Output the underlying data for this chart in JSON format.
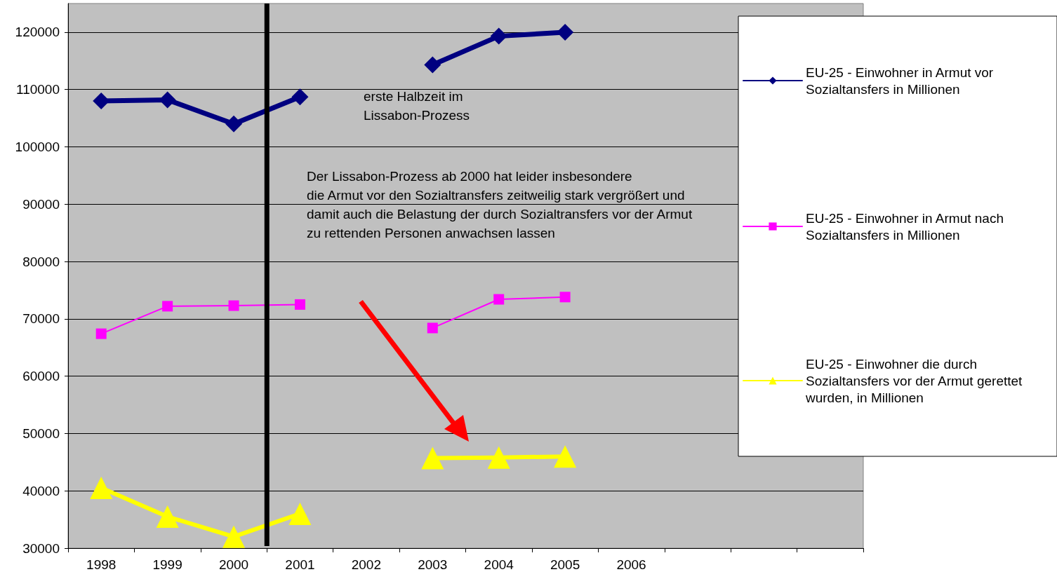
{
  "chart_data": {
    "type": "line",
    "categories": [
      "1998",
      "1999",
      "2000",
      "2001",
      "2002",
      "2003",
      "2004",
      "2005",
      "2006",
      null,
      null,
      null
    ],
    "series": [
      {
        "name": "EU-25 - Einwohner in Armut vor Sozialtansfers in Millionen",
        "color": "#000080",
        "marker": "diamond",
        "values": [
          108000,
          108200,
          104000,
          108700,
          null,
          114300,
          119300,
          120000,
          null,
          null,
          null,
          null
        ]
      },
      {
        "name": "EU-25 - Einwohner in Armut nach Sozialtansfers in Millionen",
        "color": "#ff00ff",
        "marker": "square",
        "values": [
          67400,
          72200,
          72300,
          72500,
          null,
          68400,
          73400,
          73800,
          null,
          null,
          null,
          null
        ]
      },
      {
        "name": "EU-25 - Einwohner die durch Sozialtansfers vor der Armut gerettet wurden, in Millionen",
        "color": "#ffff00",
        "marker": "triangle",
        "values": [
          40500,
          35500,
          32000,
          36000,
          null,
          45700,
          45800,
          46000,
          null,
          null,
          null,
          null
        ]
      }
    ],
    "ylim": [
      30000,
      125000
    ],
    "yticks": [
      30000,
      40000,
      50000,
      60000,
      70000,
      80000,
      90000,
      100000,
      110000,
      120000
    ],
    "grid": "y",
    "legend": "right",
    "annotations": [
      "erste Halbzeit im\nLissabon-Prozess",
      "Der Lissabon-Prozess ab 2000 hat leider insbesondere\ndie Armut vor den Sozialtransfers zeitweilig stark vergrößert und\ndamit auch die Belastung der durch Sozialtransfers vor der Armut\nzu rettenden Personen anwachsen lassen"
    ]
  }
}
